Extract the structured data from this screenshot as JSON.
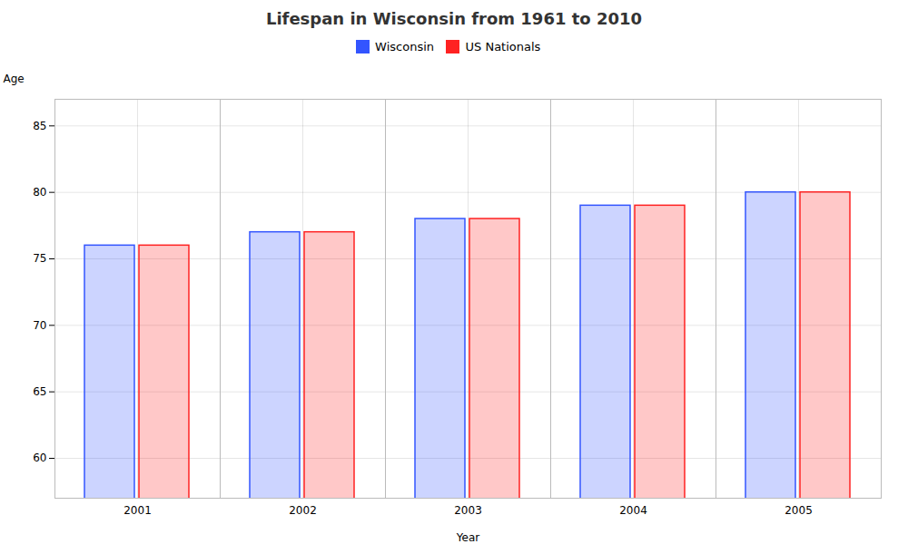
{
  "chart_data": {
    "type": "bar",
    "title": "Lifespan in Wisconsin from 1961 to 2010",
    "xlabel": "Year",
    "ylabel": "Age",
    "categories": [
      "2001",
      "2002",
      "2003",
      "2004",
      "2005"
    ],
    "series": [
      {
        "name": "Wisconsin",
        "color": "#3355ff",
        "values": [
          76,
          77,
          78,
          79,
          80
        ]
      },
      {
        "name": "US Nationals",
        "color": "#ff2222",
        "values": [
          76,
          77,
          78,
          79,
          80
        ]
      }
    ],
    "ylim": [
      57,
      87
    ],
    "yticks": [
      60,
      65,
      70,
      75,
      80,
      85
    ],
    "grid": true,
    "legend": "top"
  }
}
